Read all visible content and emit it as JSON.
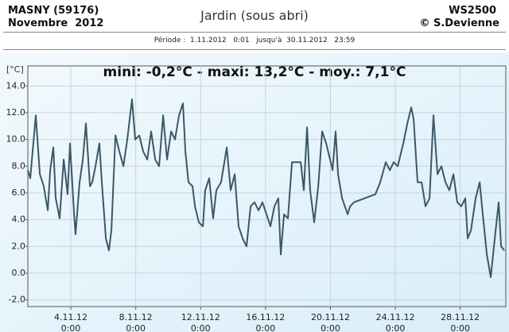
{
  "header": {
    "station": "MASNY (59176)",
    "month": "Novembre  2012",
    "title": "Jardin (sous abri)",
    "device": "WS2500",
    "author": "© S.Devienne",
    "period": "Période :  1.11.2012   0:01   jusqu'à  30.11.2012   23:59"
  },
  "chart_data": {
    "type": "line",
    "title": "mini:  -0,2°C - maxi: 13,2°C - moy.: 7,1°C",
    "y_label": "[°C]",
    "color": "#3b5868",
    "grid": true,
    "xlim": [
      1.35,
      30.81
    ],
    "xticks": [
      {
        "value": 4,
        "label": "4.11.12\n0:00"
      },
      {
        "value": 8,
        "label": "8.11.12\n0:00"
      },
      {
        "value": 12,
        "label": "12.11.12\n0:00"
      },
      {
        "value": 16,
        "label": "16.11.12\n0:00"
      },
      {
        "value": 20,
        "label": "20.11.12\n0:00"
      },
      {
        "value": 24,
        "label": "24.11.12\n0:00"
      },
      {
        "value": 28,
        "label": "28.11.12\n0:00"
      }
    ],
    "ylim": [
      -2.5,
      15.5
    ],
    "yticks": [
      {
        "value": 14,
        "label": "14.0"
      },
      {
        "value": 12,
        "label": "12.0"
      },
      {
        "value": 10,
        "label": "10.0"
      },
      {
        "value": 8,
        "label": "8.0"
      },
      {
        "value": 6,
        "label": "6.0"
      },
      {
        "value": 4,
        "label": "4.0"
      },
      {
        "value": 2,
        "label": "2.0"
      },
      {
        "value": 0,
        "label": "0.0"
      },
      {
        "value": -2,
        "label": "-2.0"
      }
    ],
    "x": [
      1.35,
      1.5,
      1.84,
      2.09,
      2.33,
      2.58,
      2.73,
      2.92,
      3.07,
      3.31,
      3.56,
      3.8,
      3.95,
      4.2,
      4.29,
      4.54,
      4.74,
      4.93,
      5.18,
      5.32,
      5.52,
      5.76,
      5.91,
      6.16,
      6.35,
      6.5,
      6.75,
      6.99,
      7.24,
      7.48,
      7.77,
      7.97,
      8.22,
      8.46,
      8.71,
      8.95,
      9.2,
      9.44,
      9.69,
      9.93,
      10.18,
      10.42,
      10.67,
      10.91,
      11.06,
      11.25,
      11.5,
      11.65,
      11.89,
      12.14,
      12.28,
      12.53,
      12.77,
      12.97,
      13.26,
      13.61,
      13.85,
      14.1,
      14.34,
      14.59,
      14.83,
      15.08,
      15.32,
      15.57,
      15.81,
      16.06,
      16.3,
      16.55,
      16.79,
      16.94,
      17.14,
      17.38,
      17.63,
      17.87,
      18.17,
      18.36,
      18.56,
      18.75,
      19.0,
      19.25,
      19.49,
      19.74,
      19.98,
      20.13,
      20.32,
      20.47,
      20.72,
      21.06,
      21.21,
      21.45,
      22.77,
      23.07,
      23.41,
      23.66,
      23.9,
      24.15,
      24.49,
      24.74,
      24.98,
      25.13,
      25.37,
      25.62,
      25.86,
      26.11,
      26.35,
      26.6,
      26.84,
      27.09,
      27.33,
      27.58,
      27.82,
      28.07,
      28.31,
      28.46,
      28.66,
      28.95,
      29.2,
      29.39,
      29.64,
      29.88,
      30.13,
      30.37,
      30.52,
      30.72
    ],
    "values": [
      7.7,
      7.1,
      11.8,
      7.4,
      6.5,
      4.7,
      7.7,
      9.4,
      5.6,
      4.1,
      8.5,
      5.9,
      9.7,
      4.4,
      2.9,
      6.8,
      8.5,
      11.2,
      6.5,
      6.8,
      8.0,
      9.7,
      6.8,
      2.6,
      1.7,
      3.2,
      10.3,
      9.1,
      8.0,
      10.0,
      13.0,
      10.0,
      10.3,
      9.1,
      8.5,
      10.6,
      8.5,
      8.0,
      11.8,
      8.5,
      10.6,
      10.0,
      11.8,
      12.7,
      9.1,
      6.8,
      6.5,
      5.0,
      3.8,
      3.5,
      6.2,
      7.1,
      4.1,
      6.2,
      6.8,
      9.4,
      6.2,
      7.4,
      3.5,
      2.6,
      2.0,
      5.0,
      5.3,
      4.7,
      5.3,
      4.4,
      3.5,
      5.0,
      5.6,
      1.4,
      4.4,
      4.1,
      8.3,
      8.3,
      8.3,
      6.2,
      10.9,
      6.2,
      3.8,
      6.5,
      10.6,
      9.7,
      8.5,
      7.7,
      10.6,
      7.4,
      5.6,
      4.4,
      5.0,
      5.3,
      5.9,
      6.8,
      8.3,
      7.7,
      8.3,
      8.0,
      9.7,
      11.2,
      12.4,
      11.5,
      6.8,
      6.8,
      5.0,
      5.6,
      11.8,
      7.4,
      8.0,
      6.8,
      6.2,
      7.4,
      5.3,
      5.0,
      5.6,
      2.6,
      3.2,
      5.6,
      6.8,
      4.4,
      1.4,
      -0.3,
      2.6,
      5.3,
      2.0,
      1.7
    ]
  }
}
